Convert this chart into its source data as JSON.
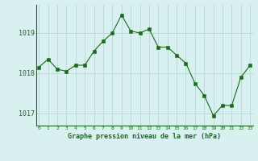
{
  "x": [
    0,
    1,
    2,
    3,
    4,
    5,
    6,
    7,
    8,
    9,
    10,
    11,
    12,
    13,
    14,
    15,
    16,
    17,
    18,
    19,
    20,
    21,
    22,
    23
  ],
  "y": [
    1018.15,
    1018.35,
    1018.1,
    1018.05,
    1018.2,
    1018.2,
    1018.55,
    1018.8,
    1019.0,
    1019.45,
    1019.05,
    1019.0,
    1019.1,
    1018.65,
    1018.65,
    1018.45,
    1018.25,
    1017.75,
    1017.45,
    1016.95,
    1017.2,
    1017.2,
    1017.9,
    1018.2
  ],
  "ylim": [
    1016.7,
    1019.7
  ],
  "yticks": [
    1017,
    1018,
    1019
  ],
  "xticks": [
    0,
    1,
    2,
    3,
    4,
    5,
    6,
    7,
    8,
    9,
    10,
    11,
    12,
    13,
    14,
    15,
    16,
    17,
    18,
    19,
    20,
    21,
    22,
    23
  ],
  "line_color": "#1a6b1a",
  "marker_color": "#1a6b1a",
  "bg_color": "#d8f0f0",
  "grid_color": "#b8d8d8",
  "xlabel": "Graphe pression niveau de la mer (hPa)",
  "xlabel_color": "#1a6b1a",
  "tick_color": "#1a6b1a",
  "spine_color": "#1a6b1a"
}
